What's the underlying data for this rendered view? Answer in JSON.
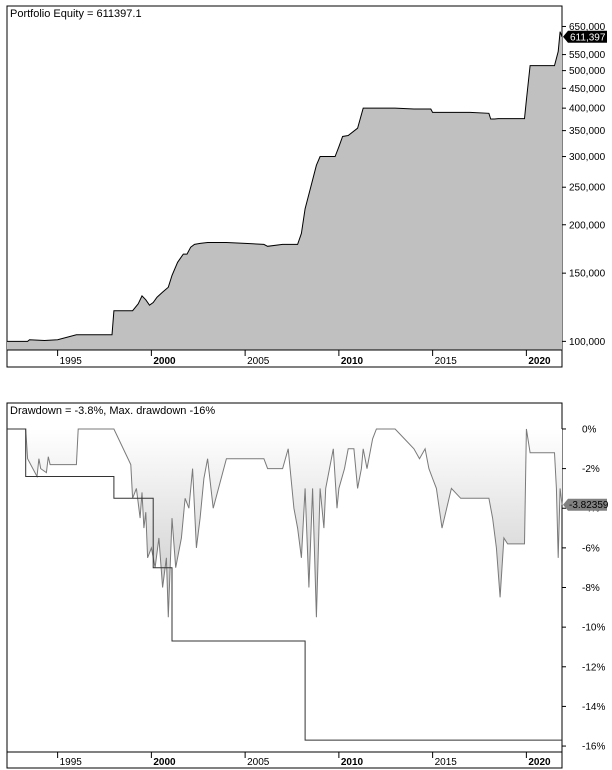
{
  "chart_data": [
    {
      "type": "area",
      "title": "Portfolio Equity = 611397.1",
      "y_scale": "log",
      "ylim": [
        95000,
        700000
      ],
      "xlim": [
        1992.3,
        2021.9
      ],
      "y_ticks": [
        {
          "value": 650000,
          "label": "650,000"
        },
        {
          "value": 550000,
          "label": "550,000"
        },
        {
          "value": 500000,
          "label": "500,000"
        },
        {
          "value": 450000,
          "label": "450,000"
        },
        {
          "value": 400000,
          "label": "400,000"
        },
        {
          "value": 350000,
          "label": "350,000"
        },
        {
          "value": 300000,
          "label": "300,000"
        },
        {
          "value": 250000,
          "label": "250,000"
        },
        {
          "value": 200000,
          "label": "200,000"
        },
        {
          "value": 150000,
          "label": "150,000"
        },
        {
          "value": 100000,
          "label": "100,000"
        }
      ],
      "x_ticks": [
        {
          "value": 1995,
          "label": "1995",
          "major": false
        },
        {
          "value": 2000,
          "label": "2000",
          "major": true
        },
        {
          "value": 2005,
          "label": "2005",
          "major": false
        },
        {
          "value": 2010,
          "label": "2010",
          "major": true
        },
        {
          "value": 2015,
          "label": "2015",
          "major": false
        },
        {
          "value": 2020,
          "label": "2020",
          "major": true
        }
      ],
      "last_value": {
        "value": 611397,
        "label": "611,397"
      },
      "series": [
        {
          "x": [
            1992.3,
            1993.4,
            1993.5,
            1994.3,
            1995.0,
            1996.0,
            1997.0,
            1997.9,
            1998.0,
            1998.9,
            1999.0,
            1999.3,
            1999.5,
            1999.7,
            1999.9,
            2000.1,
            2000.3,
            2000.6,
            2000.9,
            2001.1,
            2001.4,
            2001.7,
            2001.9,
            2002.1,
            2002.3,
            2002.6,
            2003.0,
            2004.0,
            2005.0,
            2006.0,
            2006.2,
            2007.0,
            2007.8,
            2008.0,
            2008.2,
            2008.5,
            2008.8,
            2009.0,
            2009.2,
            2009.5,
            2009.8,
            2010.0,
            2010.2,
            2010.5,
            2011.0,
            2011.3,
            2012.0,
            2013.0,
            2014.0,
            2014.9,
            2015.0,
            2016.0,
            2017.0,
            2018.0,
            2018.1,
            2018.3,
            2018.5,
            2019.0,
            2019.9,
            2020.0,
            2020.2,
            2020.5,
            2021.0,
            2021.5,
            2021.7,
            2021.8,
            2021.9
          ],
          "values": [
            100000,
            100000,
            101000,
            100500,
            101000,
            104000,
            104000,
            104000,
            120000,
            120000,
            120000,
            125000,
            131000,
            128000,
            124000,
            126000,
            130000,
            134000,
            138000,
            148000,
            160000,
            168000,
            168000,
            175000,
            178000,
            179000,
            180000,
            180000,
            179000,
            178000,
            176000,
            178000,
            178000,
            190000,
            220000,
            250000,
            285000,
            300000,
            300000,
            300000,
            300000,
            318000,
            338000,
            340000,
            355000,
            400000,
            400000,
            400000,
            398000,
            398000,
            390000,
            390000,
            390000,
            388000,
            375000,
            375000,
            376000,
            376000,
            376000,
            420000,
            515000,
            515000,
            515000,
            515000,
            560000,
            630000,
            611397
          ]
        }
      ]
    },
    {
      "type": "area",
      "title": "Drawdown = -3.8%, Max. drawdown -16%",
      "ylim": [
        -16.3,
        0.2
      ],
      "xlim": [
        1992.3,
        2021.9
      ],
      "y_ticks": [
        {
          "value": 0,
          "label": "0%"
        },
        {
          "value": -2,
          "label": "-2%"
        },
        {
          "value": -4,
          "label": "-4%"
        },
        {
          "value": -6,
          "label": "-6%"
        },
        {
          "value": -8,
          "label": "-8%"
        },
        {
          "value": -10,
          "label": "-10%"
        },
        {
          "value": -12,
          "label": "-12%"
        },
        {
          "value": -14,
          "label": "-14%"
        },
        {
          "value": -16,
          "label": "-16%"
        }
      ],
      "x_ticks": [
        {
          "value": 1995,
          "label": "1995",
          "major": false
        },
        {
          "value": 2000,
          "label": "2000",
          "major": true
        },
        {
          "value": 2005,
          "label": "2005",
          "major": false
        },
        {
          "value": 2010,
          "label": "2010",
          "major": true
        },
        {
          "value": 2015,
          "label": "2015",
          "major": false
        },
        {
          "value": 2020,
          "label": "2020",
          "major": true
        }
      ],
      "last_value": {
        "value": -3.82359,
        "label": "-3.82359"
      },
      "series": [
        {
          "name": "Drawdown",
          "x": [
            1992.3,
            1993.3,
            1993.4,
            1993.9,
            1994.0,
            1994.1,
            1994.4,
            1994.5,
            1994.6,
            1995.0,
            1995.6,
            1996.0,
            1996.1,
            1997.0,
            1997.9,
            1998.0,
            1998.9,
            1999.0,
            1999.2,
            1999.4,
            1999.5,
            1999.6,
            1999.7,
            1999.8,
            2000.0,
            2000.2,
            2000.4,
            2000.6,
            2000.8,
            2000.9,
            2001.1,
            2001.3,
            2001.6,
            2001.8,
            2002.0,
            2002.2,
            2002.4,
            2002.6,
            2002.8,
            2003.0,
            2003.3,
            2004.0,
            2004.5,
            2005.0,
            2005.5,
            2006.0,
            2006.2,
            2006.7,
            2007.0,
            2007.3,
            2007.6,
            2007.8,
            2008.0,
            2008.2,
            2008.4,
            2008.6,
            2008.8,
            2009.0,
            2009.2,
            2009.3,
            2009.5,
            2009.7,
            2009.9,
            2010.0,
            2010.3,
            2010.5,
            2010.8,
            2011.0,
            2011.2,
            2011.3,
            2011.5,
            2011.8,
            2012.0,
            2013.0,
            2013.5,
            2014.0,
            2014.3,
            2014.6,
            2014.8,
            2015.0,
            2015.2,
            2015.5,
            2016.0,
            2016.5,
            2017.0,
            2017.5,
            2018.0,
            2018.2,
            2018.4,
            2018.6,
            2018.8,
            2019.0,
            2019.5,
            2019.9,
            2020.0,
            2020.2,
            2020.5,
            2021.0,
            2021.5,
            2021.6,
            2021.7,
            2021.8,
            2021.9
          ],
          "values": [
            0,
            0,
            -1.5,
            -2.4,
            -1.5,
            -2.0,
            -2.2,
            -1.4,
            -1.8,
            -1.8,
            -1.8,
            -1.8,
            0,
            0,
            0,
            0,
            -1.8,
            -3.5,
            -3.0,
            -4.5,
            -3.2,
            -5.0,
            -4.2,
            -6.5,
            -6.0,
            -7.0,
            -5.5,
            -8.0,
            -6.5,
            -9.5,
            -4.5,
            -7.0,
            -5.5,
            -3.5,
            -4.0,
            -2.0,
            -6.0,
            -4.5,
            -2.5,
            -1.5,
            -4.0,
            -1.5,
            -1.5,
            -1.5,
            -1.5,
            -1.5,
            -2.0,
            -2.0,
            -2.0,
            -1.0,
            -4.0,
            -5.0,
            -6.5,
            -3.0,
            -8.0,
            -3.0,
            -9.5,
            -3.0,
            -5.0,
            -3.0,
            -2.0,
            -1.0,
            -4.0,
            -3.0,
            -2.0,
            -1.0,
            -1.0,
            -3.0,
            -2.0,
            -1.0,
            -2.0,
            -0.5,
            0,
            0,
            -0.5,
            -1.0,
            -1.5,
            -1.0,
            -2.0,
            -2.5,
            -3.0,
            -5.0,
            -3.0,
            -3.5,
            -3.5,
            -3.5,
            -3.5,
            -4.5,
            -6.0,
            -8.5,
            -5.5,
            -5.8,
            -5.8,
            -5.8,
            0,
            -1.2,
            -1.2,
            -1.2,
            -1.2,
            -3.0,
            -6.5,
            -3.0,
            -3.82
          ]
        }
      ],
      "max_drawdown_steps": {
        "x": [
          1992.3,
          1993.3,
          1993.3,
          1998.0,
          1998.0,
          2000.1,
          2000.1,
          2001.1,
          2001.1,
          2008.2,
          2008.2,
          2021.9
        ],
        "values": [
          0,
          0,
          -2.4,
          -2.4,
          -3.5,
          -3.5,
          -7.0,
          -7.0,
          -10.7,
          -10.7,
          -15.7,
          -15.7
        ]
      }
    }
  ]
}
